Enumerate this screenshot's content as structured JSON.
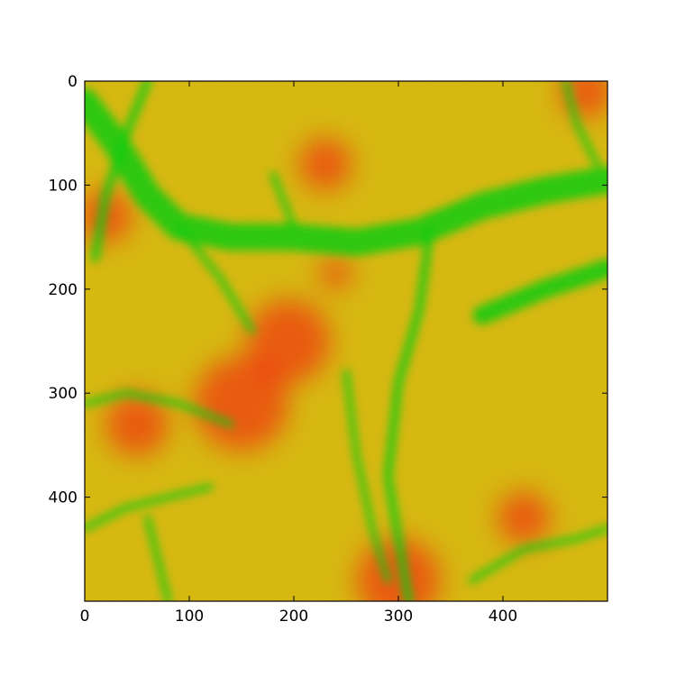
{
  "chart_data": {
    "type": "heatmap",
    "title": "",
    "xlabel": "",
    "ylabel": "",
    "xlim": [
      0,
      500
    ],
    "ylim": [
      500,
      0
    ],
    "x_ticks": [
      0,
      100,
      200,
      300,
      400
    ],
    "y_ticks": [
      0,
      100,
      200,
      300,
      400
    ],
    "colormap": [
      "#ff0000",
      "#cccc00",
      "#00cc00"
    ],
    "description_of_values": "terrain elevation-like field rendered red (high) to green (low)",
    "channels": [
      {
        "path": [
          [
            0,
            20
          ],
          [
            30,
            60
          ],
          [
            60,
            110
          ],
          [
            90,
            140
          ],
          [
            140,
            150
          ],
          [
            200,
            150
          ],
          [
            260,
            155
          ],
          [
            320,
            145
          ],
          [
            380,
            120
          ],
          [
            440,
            105
          ],
          [
            500,
            95
          ]
        ],
        "width": 26
      },
      {
        "path": [
          [
            380,
            225
          ],
          [
            440,
            200
          ],
          [
            500,
            180
          ]
        ],
        "width": 18
      },
      {
        "path": [
          [
            60,
            0
          ],
          [
            40,
            50
          ],
          [
            20,
            110
          ],
          [
            10,
            170
          ]
        ],
        "width": 8
      },
      {
        "path": [
          [
            330,
            145
          ],
          [
            320,
            220
          ],
          [
            300,
            290
          ],
          [
            290,
            380
          ],
          [
            300,
            440
          ],
          [
            310,
            500
          ]
        ],
        "width": 8
      },
      {
        "path": [
          [
            250,
            280
          ],
          [
            260,
            360
          ],
          [
            275,
            430
          ],
          [
            290,
            480
          ]
        ],
        "width": 6
      },
      {
        "path": [
          [
            90,
            140
          ],
          [
            130,
            190
          ],
          [
            160,
            240
          ]
        ],
        "width": 6
      },
      {
        "path": [
          [
            0,
            310
          ],
          [
            40,
            300
          ],
          [
            90,
            310
          ],
          [
            140,
            330
          ]
        ],
        "width": 6
      },
      {
        "path": [
          [
            0,
            430
          ],
          [
            40,
            410
          ],
          [
            80,
            400
          ],
          [
            120,
            390
          ]
        ],
        "width": 6
      },
      {
        "path": [
          [
            60,
            420
          ],
          [
            70,
            460
          ],
          [
            80,
            500
          ]
        ],
        "width": 6
      },
      {
        "path": [
          [
            370,
            480
          ],
          [
            420,
            450
          ],
          [
            470,
            440
          ],
          [
            500,
            430
          ]
        ],
        "width": 6
      },
      {
        "path": [
          [
            460,
            0
          ],
          [
            470,
            40
          ],
          [
            490,
            80
          ]
        ],
        "width": 6
      },
      {
        "path": [
          [
            180,
            90
          ],
          [
            200,
            140
          ]
        ],
        "width": 6
      }
    ],
    "hotspots": [
      {
        "x": 230,
        "y": 80,
        "r": 25
      },
      {
        "x": 195,
        "y": 250,
        "r": 40
      },
      {
        "x": 150,
        "y": 310,
        "r": 45
      },
      {
        "x": 50,
        "y": 330,
        "r": 30
      },
      {
        "x": 20,
        "y": 130,
        "r": 25
      },
      {
        "x": 300,
        "y": 480,
        "r": 40
      },
      {
        "x": 480,
        "y": 10,
        "r": 25
      },
      {
        "x": 240,
        "y": 185,
        "r": 15
      },
      {
        "x": 420,
        "y": 420,
        "r": 25
      }
    ]
  }
}
